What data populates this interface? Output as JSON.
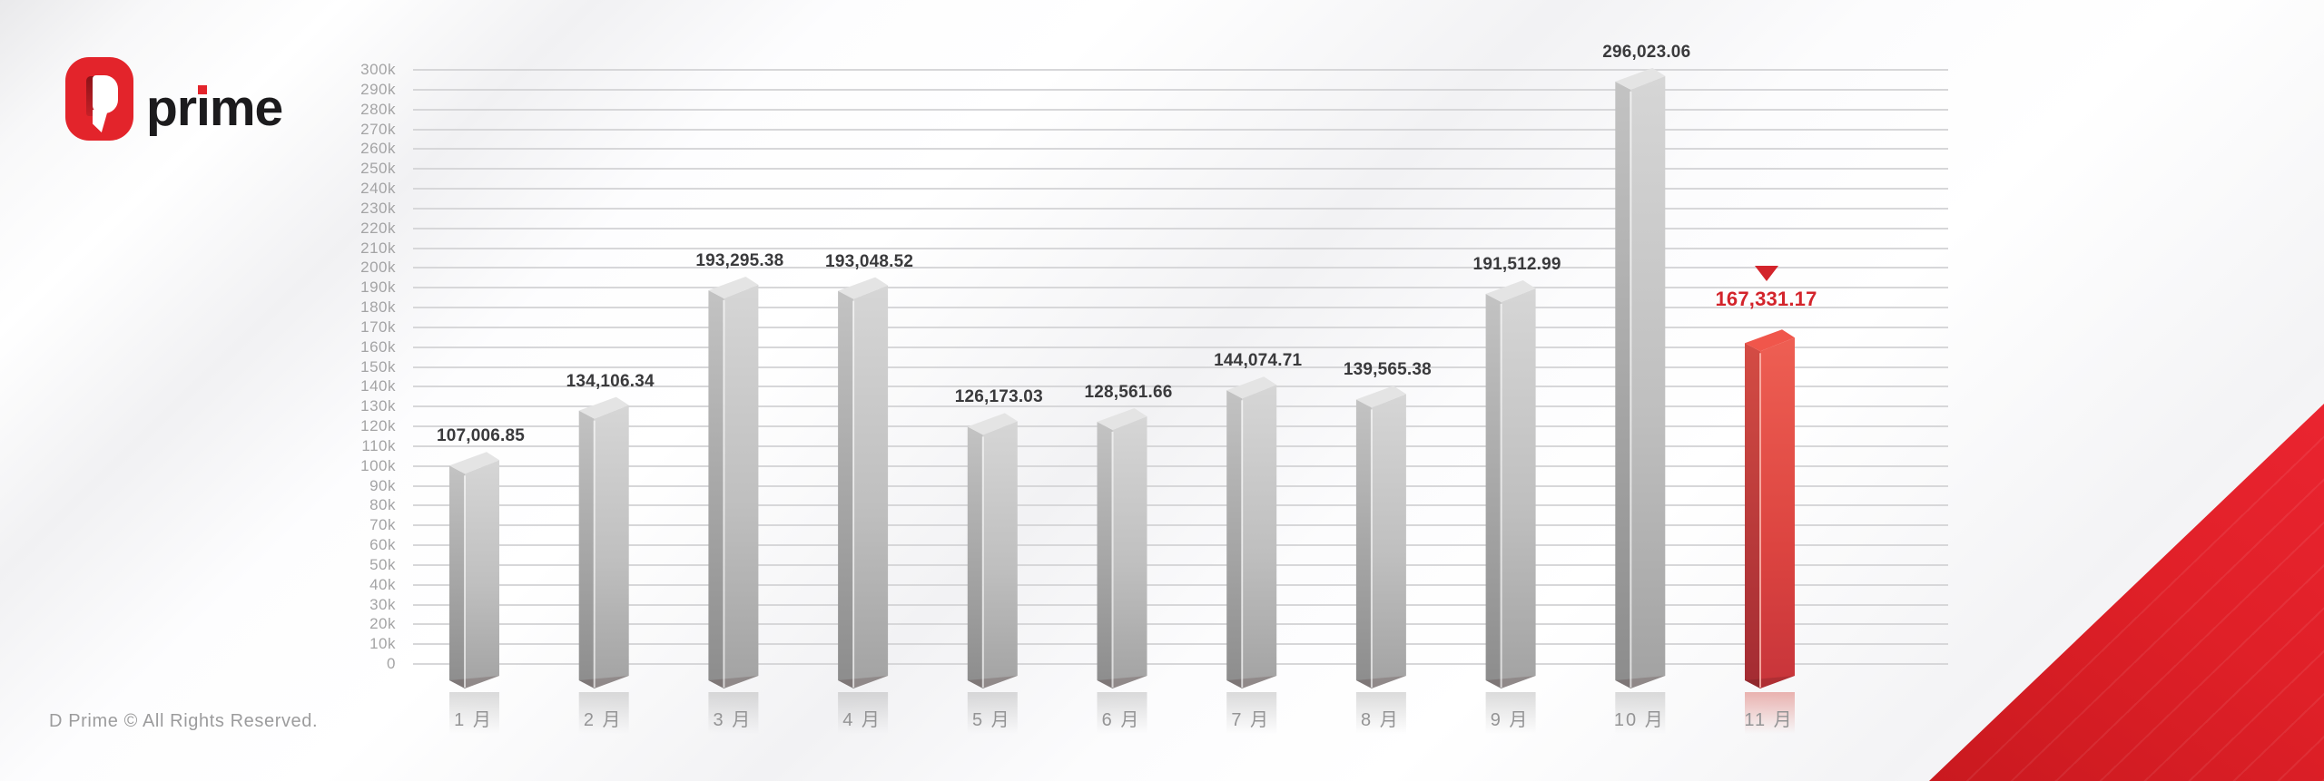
{
  "brand": {
    "wordmark_before_i": "pr",
    "wordmark_i": "ı",
    "wordmark_after_i": "me",
    "brand_red": "#e3242b"
  },
  "footer": {
    "copyright_text": "D Prime © All Rights Reserved."
  },
  "chart_data": {
    "type": "bar",
    "title": "",
    "categories": [
      "1 月",
      "2 月",
      "3 月",
      "4 月",
      "5 月",
      "6 月",
      "7 月",
      "8 月",
      "9 月",
      "10 月",
      "11 月"
    ],
    "values": [
      107006.85,
      134106.34,
      193295.38,
      193048.52,
      126173.03,
      128561.66,
      144074.71,
      139565.38,
      191512.99,
      296023.06,
      167331.17
    ],
    "value_labels": [
      "107,006.85",
      "134,106.34",
      "193,295.38",
      "193,048.52",
      "126,173.03",
      "128,561.66",
      "144,074.71",
      "139,565.38",
      "191,512.99",
      "296,023.06",
      "167,331.17"
    ],
    "highlight_index": 10,
    "highlight_marker": "▼",
    "y_axis": {
      "min": 0,
      "max": 300000,
      "step": 10000,
      "tick_suffix": "k",
      "zero_label": "0"
    },
    "grid": true,
    "legend_position": "none",
    "colors": {
      "bar_front": "#bdbdbd",
      "bar_side": "#9a9a9a",
      "bar_top": "#e4e4e4",
      "highlight_front": "#d84440",
      "highlight_side": "#b53338",
      "highlight_top": "#f0564b",
      "value_label": "#3a3a3c",
      "highlight_value_label": "#d3242b",
      "axis_text": "#a4a4a5",
      "x_label_text": "#949495",
      "gridline": "#d7d7d9"
    }
  }
}
